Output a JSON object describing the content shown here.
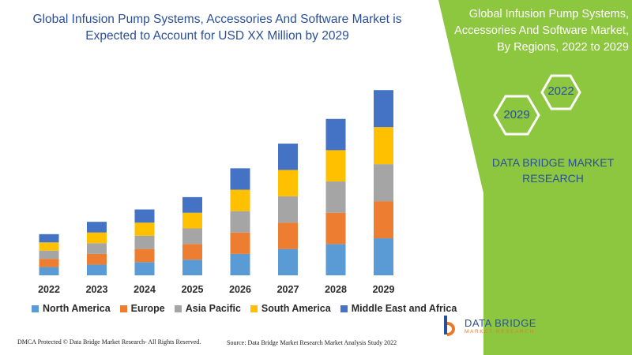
{
  "title": "Global Infusion Pump Systems, Accessories And Software Market is Expected to Account for USD XX Million by 2029",
  "panel": {
    "title": "Global Infusion Pump Systems, Accessories And Software Market, By Regions, 2022 to 2029",
    "hex_year_a": "2022",
    "hex_year_b": "2029",
    "brand": "DATA BRIDGE MARKET RESEARCH"
  },
  "colors": {
    "panel_green": "#8dc63f",
    "title_blue": "#2a4f9a",
    "north_america": "#5b9bd5",
    "europe": "#ed7d31",
    "asia_pacific": "#a5a5a5",
    "south_america": "#ffc000",
    "middle_east_africa": "#4472c4"
  },
  "chart_data": {
    "type": "bar",
    "stacked": true,
    "categories": [
      "2022",
      "2023",
      "2024",
      "2025",
      "2026",
      "2027",
      "2028",
      "2029"
    ],
    "series": [
      {
        "name": "North America",
        "color": "#5b9bd5",
        "values": [
          10,
          13,
          16,
          19,
          26,
          32,
          38,
          45
        ]
      },
      {
        "name": "Europe",
        "color": "#ed7d31",
        "values": [
          10,
          13,
          16,
          19,
          26,
          32,
          38,
          45
        ]
      },
      {
        "name": "Asia Pacific",
        "color": "#a5a5a5",
        "values": [
          10,
          13,
          16,
          19,
          26,
          32,
          38,
          45
        ]
      },
      {
        "name": "South America",
        "color": "#ffc000",
        "values": [
          10,
          13,
          16,
          19,
          26,
          32,
          38,
          45
        ]
      },
      {
        "name": "Middle East and Africa",
        "color": "#4472c4",
        "values": [
          10,
          13,
          16,
          19,
          26,
          32,
          38,
          45
        ]
      }
    ],
    "ylim": [
      0,
      230
    ],
    "grid": false,
    "legend_position": "bottom"
  },
  "legend": [
    {
      "label": "North America",
      "color": "#5b9bd5"
    },
    {
      "label": "Europe",
      "color": "#ed7d31"
    },
    {
      "label": "Asia Pacific",
      "color": "#a5a5a5"
    },
    {
      "label": "South America",
      "color": "#ffc000"
    },
    {
      "label": "Middle East and Africa",
      "color": "#4472c4"
    }
  ],
  "footer": {
    "left": "DMCA Protected © Data Bridge Market Research- All Rights Reserved.",
    "right": "Source: Data Bridge Market Research Market Analysis Study 2022"
  },
  "logo": {
    "name": "DATA BRIDGE",
    "sub": "MARKET RESEARCH"
  }
}
